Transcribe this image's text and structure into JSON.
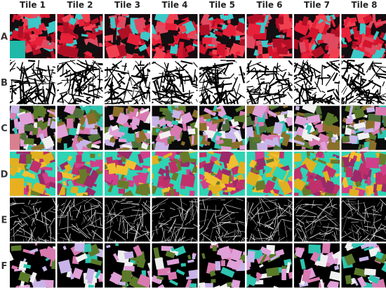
{
  "columns": [
    "Tile 1",
    "Tile 2",
    "Tile 3",
    "Tile 4",
    "Tile 5",
    "Tile 6",
    "Tile 7",
    "Tile 8"
  ],
  "rows": [
    "A",
    "B",
    "C",
    "D",
    "E",
    "F"
  ]
}
